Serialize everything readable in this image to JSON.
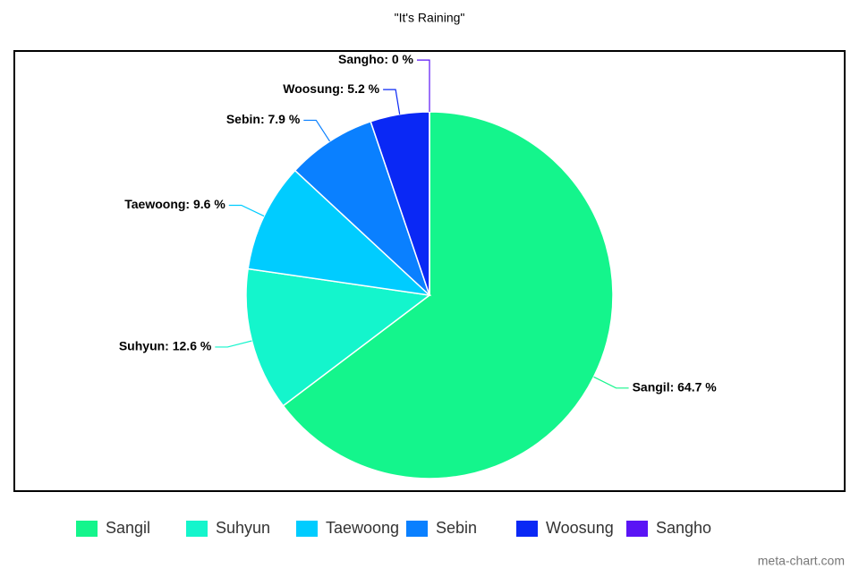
{
  "chart_data": {
    "type": "pie",
    "title": "\"It's Raining\"",
    "categories": [
      "Sangil",
      "Suhyun",
      "Taewoong",
      "Sebin",
      "Woosung",
      "Sangho"
    ],
    "values": [
      64.7,
      12.6,
      9.6,
      7.9,
      5.2,
      0
    ],
    "value_labels": [
      "Sangil: 64.7 %",
      "Suhyun: 12.6 %",
      "Taewoong: 9.6 %",
      "Sebin: 7.9 %",
      "Woosung: 5.2 %",
      "Sangho: 0 %"
    ],
    "colors": [
      "#14f58c",
      "#14f5cc",
      "#00ccff",
      "#0a80ff",
      "#0a28f5",
      "#5a14f5"
    ],
    "legend": "bottom",
    "watermark": "meta-chart.com"
  }
}
